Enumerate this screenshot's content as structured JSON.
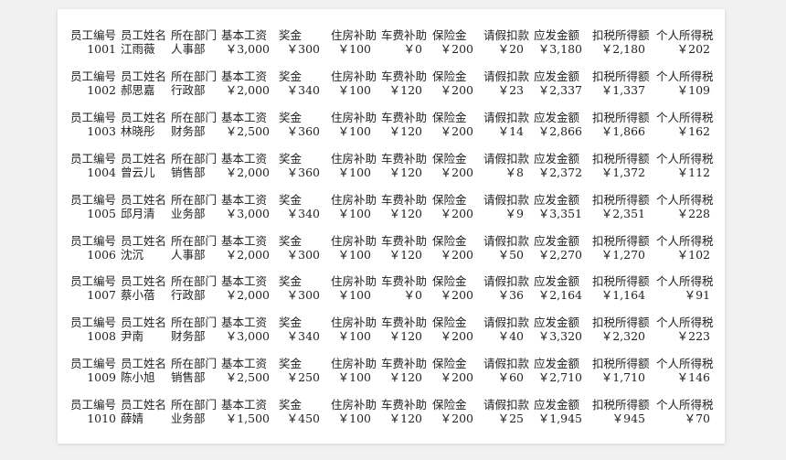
{
  "headers": [
    "员工编号",
    "员工姓名",
    "所在部门",
    "基本工资",
    "奖金",
    "住房补助",
    "车费补助",
    "保险金",
    "请假扣款",
    "应发金额",
    "扣税所得额",
    "个人所得税"
  ],
  "rows": [
    [
      "1001",
      "江雨薇",
      "人事部",
      "￥3,000",
      "￥300",
      "￥100",
      "￥0",
      "￥200",
      "￥20",
      "￥3,180",
      "￥2,180",
      "￥202"
    ],
    [
      "1002",
      "郝思嘉",
      "行政部",
      "￥2,000",
      "￥340",
      "￥100",
      "￥120",
      "￥200",
      "￥23",
      "￥2,337",
      "￥1,337",
      "￥109"
    ],
    [
      "1003",
      "林晓彤",
      "财务部",
      "￥2,500",
      "￥360",
      "￥100",
      "￥120",
      "￥200",
      "￥14",
      "￥2,866",
      "￥1,866",
      "￥162"
    ],
    [
      "1004",
      "曾云儿",
      "销售部",
      "￥2,000",
      "￥360",
      "￥100",
      "￥120",
      "￥200",
      "￥8",
      "￥2,372",
      "￥1,372",
      "￥112"
    ],
    [
      "1005",
      "邱月清",
      "业务部",
      "￥3,000",
      "￥340",
      "￥100",
      "￥120",
      "￥200",
      "￥9",
      "￥3,351",
      "￥2,351",
      "￥228"
    ],
    [
      "1006",
      "沈沉",
      "人事部",
      "￥2,000",
      "￥300",
      "￥100",
      "￥120",
      "￥200",
      "￥50",
      "￥2,270",
      "￥1,270",
      "￥102"
    ],
    [
      "1007",
      "蔡小蓓",
      "行政部",
      "￥2,000",
      "￥300",
      "￥100",
      "￥0",
      "￥200",
      "￥36",
      "￥2,164",
      "￥1,164",
      "￥91"
    ],
    [
      "1008",
      "尹南",
      "财务部",
      "￥3,000",
      "￥340",
      "￥100",
      "￥120",
      "￥200",
      "￥40",
      "￥3,320",
      "￥2,320",
      "￥223"
    ],
    [
      "1009",
      " 陈小旭",
      "销售部",
      "￥2,500",
      "￥250",
      "￥100",
      "￥120",
      "￥200",
      "￥60",
      "￥2,710",
      "￥1,710",
      "￥146"
    ],
    [
      "1010",
      "薛婧",
      "业务部",
      "￥1,500",
      "￥450",
      "￥100",
      "￥120",
      "￥200",
      "￥25",
      "￥1,945",
      "￥945",
      "￥70"
    ]
  ]
}
